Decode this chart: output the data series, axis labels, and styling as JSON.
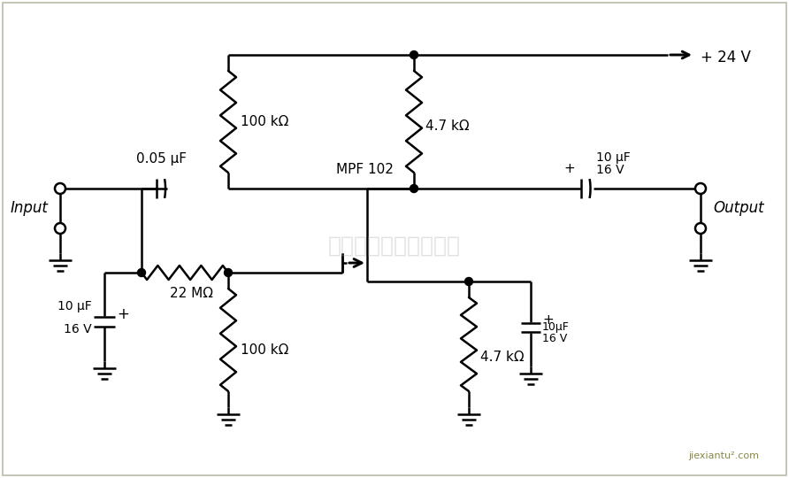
{
  "bg_color": "#ffffff",
  "line_color": "#000000",
  "watermark_text": "杭州将睿科技有限公司",
  "watermark_color": "#aaaaaa",
  "watermark_alpha": 0.35,
  "labels": {
    "input": "Input",
    "output": "Output",
    "vcc": "+ 24 V",
    "r1": "100 kΩ",
    "r2": "100 kΩ",
    "r3": "4.7 kΩ",
    "r4": "4.7 kΩ",
    "r5": "22 MΩ",
    "c1": "0.05 μF",
    "c2_line1": "10 μF",
    "c2_line2": "16 V",
    "c3_line1": "10 μF",
    "c3_line2": "16 V",
    "c4_line1": "10μF",
    "c4_line2": "16 V",
    "transistor": "MPF 102"
  },
  "footer": "jiexiantu².com"
}
